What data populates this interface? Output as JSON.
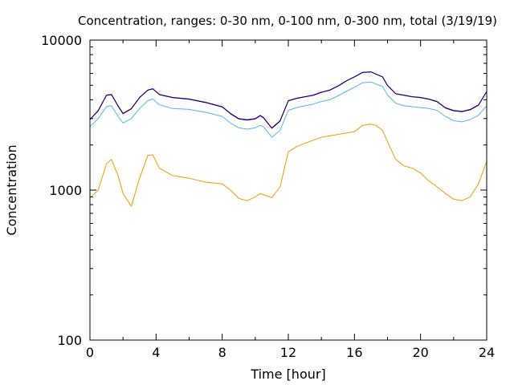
{
  "chart_data": {
    "type": "line",
    "title": "Concentration, ranges: 0-30 nm, 0-100 nm, 0-300 nm, total (3/19/19)",
    "xlabel": "Time [hour]",
    "ylabel": "Concentration",
    "xlim": [
      0,
      24
    ],
    "ylim": [
      100,
      10000
    ],
    "yscale": "log",
    "grid": false,
    "legend": "none",
    "x_ticks": [
      {
        "value": 0,
        "label": "0"
      },
      {
        "value": 4,
        "label": "4"
      },
      {
        "value": 8,
        "label": "8"
      },
      {
        "value": 12,
        "label": "12"
      },
      {
        "value": 16,
        "label": "16"
      },
      {
        "value": 20,
        "label": "20"
      },
      {
        "value": 24,
        "label": "24"
      }
    ],
    "y_ticks": [
      {
        "value": 100,
        "label": "100"
      },
      {
        "value": 1000,
        "label": "1000"
      },
      {
        "value": 10000,
        "label": "10000"
      }
    ],
    "x": [
      0,
      0.5,
      1,
      1.3,
      1.7,
      2,
      2.5,
      3,
      3.5,
      3.8,
      4.2,
      5,
      6,
      7,
      8,
      8.5,
      9,
      9.5,
      10,
      10.3,
      10.5,
      11,
      11.5,
      12,
      12.5,
      13,
      13.5,
      14,
      14.5,
      15,
      15.5,
      16,
      16.5,
      17,
      17.3,
      17.7,
      18,
      18.5,
      19,
      19.5,
      20,
      20.5,
      21,
      21.5,
      22,
      22.5,
      23,
      23.5,
      24
    ],
    "series": [
      {
        "color": "#e6a000",
        "values": [
          890,
          1000,
          1500,
          1600,
          1250,
          950,
          780,
          1200,
          1700,
          1720,
          1400,
          1250,
          1200,
          1130,
          1100,
          1000,
          880,
          850,
          900,
          950,
          930,
          890,
          1050,
          1800,
          1950,
          2050,
          2150,
          2250,
          2300,
          2350,
          2400,
          2450,
          2700,
          2750,
          2700,
          2500,
          2100,
          1600,
          1450,
          1400,
          1300,
          1150,
          1050,
          950,
          870,
          850,
          900,
          1100,
          1550
        ]
      },
      {
        "color": "#56b4e9",
        "values": [
          2650,
          3000,
          3600,
          3650,
          3100,
          2800,
          3000,
          3500,
          3950,
          4050,
          3700,
          3500,
          3450,
          3300,
          3100,
          2800,
          2600,
          2550,
          2600,
          2700,
          2650,
          2250,
          2500,
          3400,
          3550,
          3650,
          3750,
          3900,
          4000,
          4250,
          4550,
          4850,
          5200,
          5250,
          5100,
          4900,
          4300,
          3800,
          3650,
          3600,
          3550,
          3500,
          3400,
          3100,
          2900,
          2850,
          2950,
          3150,
          3650
        ]
      },
      {
        "color": "#9400d3",
        "values": [
          2950,
          3400,
          4300,
          4350,
          3650,
          3250,
          3500,
          4150,
          4650,
          4750,
          4350,
          4150,
          4050,
          3850,
          3600,
          3250,
          3000,
          2950,
          3000,
          3150,
          3050,
          2600,
          2900,
          3950,
          4100,
          4200,
          4300,
          4500,
          4650,
          4950,
          5350,
          5700,
          6100,
          6150,
          5950,
          5700,
          5000,
          4400,
          4300,
          4200,
          4150,
          4050,
          3900,
          3550,
          3400,
          3350,
          3450,
          3700,
          4550
        ]
      },
      {
        "color": "#000060",
        "values": [
          2950,
          3380,
          4280,
          4330,
          3630,
          3230,
          3480,
          4130,
          4630,
          4730,
          4330,
          4130,
          4030,
          3830,
          3580,
          3230,
          2980,
          2930,
          2980,
          3130,
          3030,
          2580,
          2880,
          3930,
          4080,
          4180,
          4280,
          4480,
          4630,
          4930,
          5330,
          5680,
          6080,
          6130,
          5930,
          5680,
          4980,
          4380,
          4280,
          4180,
          4130,
          4030,
          3880,
          3530,
          3380,
          3330,
          3430,
          3680,
          4530
        ]
      }
    ]
  }
}
